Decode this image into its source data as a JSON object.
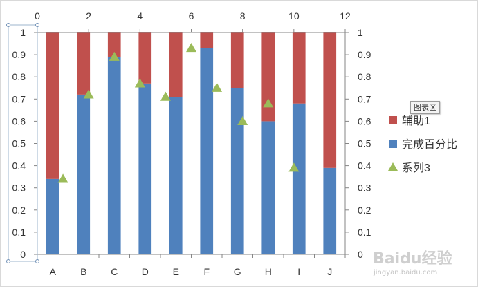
{
  "chart_data": {
    "type": "bar",
    "stacked": true,
    "categories": [
      "A",
      "B",
      "C",
      "D",
      "E",
      "F",
      "G",
      "H",
      "I",
      "J"
    ],
    "series": [
      {
        "name": "完成百分比",
        "kind": "bar",
        "color": "#4f81bd",
        "values": [
          0.34,
          0.72,
          0.89,
          0.77,
          0.71,
          0.93,
          0.75,
          0.6,
          0.68,
          0.39
        ]
      },
      {
        "name": "辅助1",
        "kind": "bar",
        "color": "#c0504d",
        "values": [
          0.66,
          0.28,
          0.11,
          0.23,
          0.29,
          0.07,
          0.25,
          0.4,
          0.32,
          0.61
        ]
      },
      {
        "name": "系列3",
        "kind": "scatter",
        "marker": "triangle",
        "color": "#9bbb59",
        "x": [
          1,
          2,
          3,
          4,
          5,
          6,
          7,
          8,
          9,
          10
        ],
        "values": [
          0.34,
          0.72,
          0.89,
          0.77,
          0.71,
          0.93,
          0.75,
          0.6,
          0.68,
          0.39
        ]
      }
    ],
    "y_axis_left": {
      "range": [
        0,
        1
      ],
      "ticks": [
        "0",
        "0.1",
        "0.2",
        "0.3",
        "0.4",
        "0.5",
        "0.6",
        "0.7",
        "0.8",
        "0.9",
        "1"
      ]
    },
    "y_axis_right": {
      "range": [
        0,
        1
      ],
      "ticks": [
        "0",
        "0.1",
        "0.2",
        "0.3",
        "0.4",
        "0.5",
        "0.6",
        "0.7",
        "0.8",
        "0.9",
        "1"
      ]
    },
    "x_axis_top": {
      "range": [
        0,
        12
      ],
      "ticks": [
        "0",
        "2",
        "4",
        "6",
        "8",
        "10",
        "12"
      ]
    },
    "legend": {
      "position": "right",
      "order": [
        "辅助1",
        "完成百分比",
        "系列3"
      ]
    },
    "grid": false
  },
  "tooltip": "图表区",
  "watermark": {
    "logo": "Baidu经验",
    "url": "jingyan.baidu.com"
  }
}
